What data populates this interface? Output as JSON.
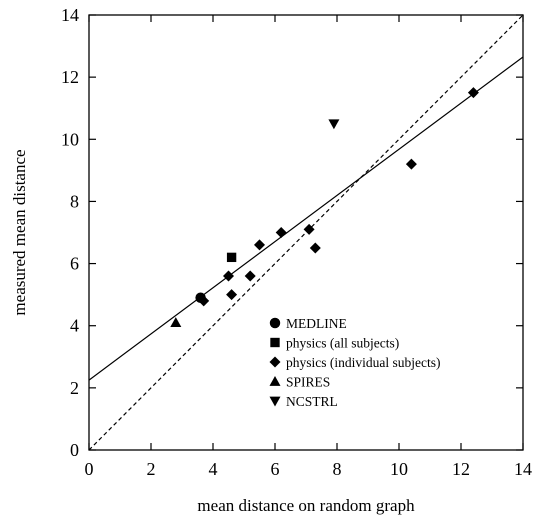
{
  "chart_data": {
    "type": "scatter",
    "xlabel": "mean distance on random graph",
    "ylabel": "measured mean distance",
    "xlim": [
      0,
      14
    ],
    "ylim": [
      0,
      14
    ],
    "xticks": [
      "0",
      "2",
      "4",
      "6",
      "8",
      "10",
      "12",
      "14"
    ],
    "yticks": [
      "0",
      "2",
      "4",
      "6",
      "8",
      "10",
      "12",
      "14"
    ],
    "grid": false,
    "legend_position": "bottom-right",
    "series": [
      {
        "name": "MEDLINE",
        "marker": "circle",
        "points": [
          [
            3.6,
            4.9
          ]
        ]
      },
      {
        "name": "physics (all subjects)",
        "marker": "square",
        "points": [
          [
            4.6,
            6.2
          ]
        ]
      },
      {
        "name": "physics (individual subjects)",
        "marker": "diamond",
        "points": [
          [
            3.7,
            4.8
          ],
          [
            4.5,
            5.6
          ],
          [
            4.6,
            5.0
          ],
          [
            5.2,
            5.6
          ],
          [
            5.5,
            6.6
          ],
          [
            6.2,
            7.0
          ],
          [
            7.1,
            7.1
          ],
          [
            7.3,
            6.5
          ],
          [
            10.4,
            9.2
          ],
          [
            12.4,
            11.5
          ]
        ]
      },
      {
        "name": "SPIRES",
        "marker": "triangle-up",
        "points": [
          [
            2.8,
            4.1
          ]
        ]
      },
      {
        "name": "NCSTRL",
        "marker": "triangle-down",
        "points": [
          [
            7.9,
            10.5
          ]
        ]
      }
    ],
    "lines": [
      {
        "style": "solid",
        "points": [
          [
            0,
            2.25
          ],
          [
            14,
            12.65
          ]
        ]
      },
      {
        "style": "dashed",
        "points": [
          [
            0,
            0
          ],
          [
            14,
            14
          ]
        ]
      }
    ]
  }
}
